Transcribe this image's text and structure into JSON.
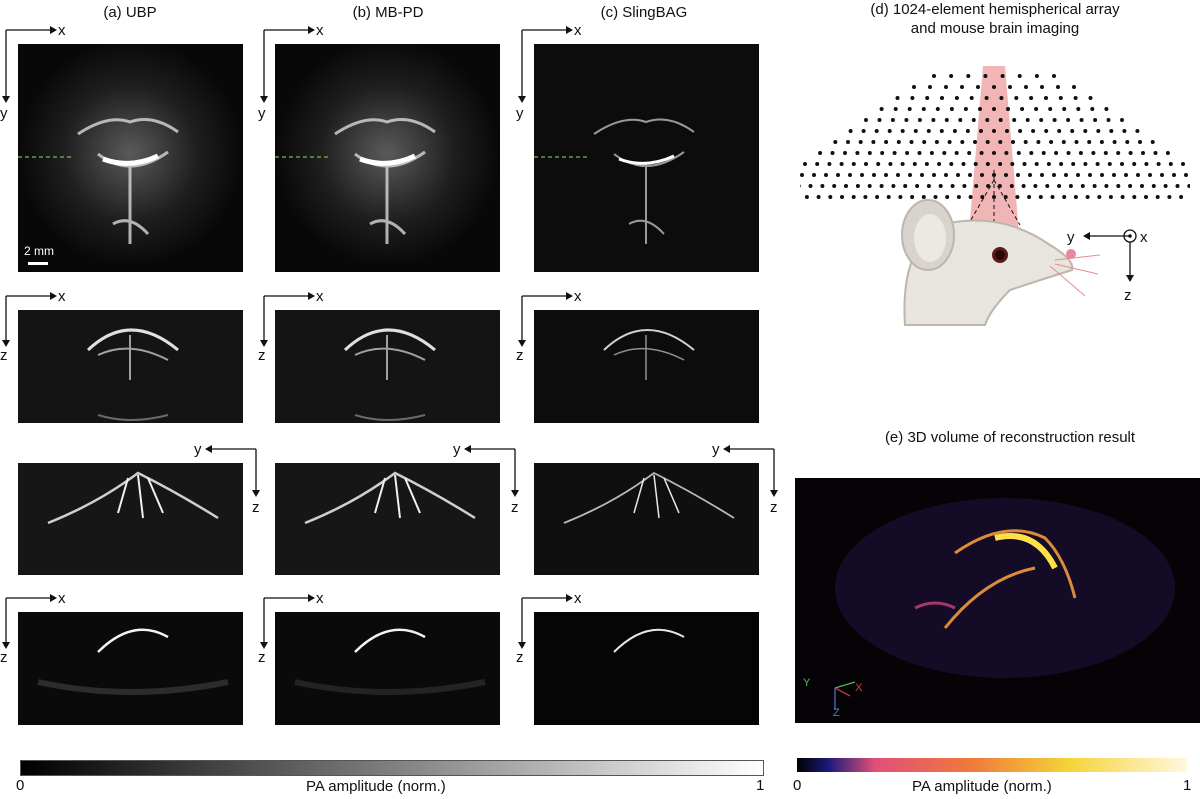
{
  "columns": {
    "a": "(a)  UBP",
    "b": "(b)  MB-PD",
    "c": "(c)  SlingBAG"
  },
  "axes": {
    "row1": {
      "h": "x",
      "v": "y"
    },
    "row2": {
      "h": "x",
      "v": "z"
    },
    "row3": {
      "h": "y",
      "v": "z"
    },
    "row4": {
      "h": "x",
      "v": "z"
    }
  },
  "scalebar": "2 mm",
  "panel_d": {
    "title_line1": "(d)  1024-element hemispherical array",
    "title_line2": "and mouse brain imaging",
    "axis_y": "y",
    "axis_x": "x",
    "axis_z": "z"
  },
  "panel_e": {
    "title": "(e)  3D volume of reconstruction result",
    "gizmo": {
      "y": "Y",
      "x": "X",
      "z": "Z"
    }
  },
  "colorbar_gray": {
    "label": "PA amplitude (norm.)",
    "min": "0",
    "max": "1"
  },
  "colorbar_hot": {
    "label": "PA amplitude (norm.)",
    "min": "0",
    "max": "1"
  },
  "colors": {
    "accent_line": "#7ab648",
    "beam": "#e05a5a",
    "array_dot": "#111111"
  }
}
